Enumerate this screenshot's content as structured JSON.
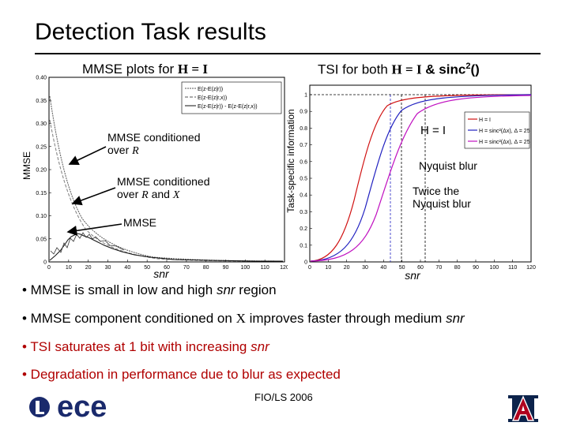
{
  "slide": {
    "title": "Detection Task results",
    "footer": "FIO/LS 2006",
    "logo_text": "ece"
  },
  "left_panel": {
    "title_prefix": "MMSE plots for ",
    "title_math": "H = I",
    "ylabel": "MMSE",
    "xlabel": "snr",
    "yticks": [
      "0.40",
      "0.35",
      "0.30",
      "0.25",
      "0.20",
      "0.15",
      "0.10",
      "0.05",
      "0"
    ],
    "xticks": [
      "0",
      "10",
      "20",
      "30",
      "40",
      "50",
      "60",
      "70",
      "80",
      "90",
      "100",
      "110",
      "120"
    ],
    "legend": [
      "E(z-E(z|r))",
      "E(z-E(z|r,x))",
      "E(z-E(z|r)) - E(z-E(z|r,x))"
    ],
    "annotations": {
      "cond_r_1": "MMSE conditioned",
      "cond_r_2": "over ",
      "cond_r_var": "R",
      "cond_rx_1": "MMSE conditioned",
      "cond_rx_2": "over ",
      "cond_rx_var": "R",
      "cond_rx_and": " and ",
      "cond_rx_var2": "X",
      "mmse": "MMSE"
    }
  },
  "right_panel": {
    "title_prefix": "TSI for both ",
    "title_math": "H = I",
    "title_suffix": " & sinc",
    "title_sup": "2",
    "title_end": "()",
    "ylabel": "Task-specific information",
    "xlabel": "snr",
    "yticks": [
      "1",
      "0.9",
      "0.8",
      "0.7",
      "0.6",
      "0.5",
      "0.4",
      "0.3",
      "0.2",
      "0.1",
      "0"
    ],
    "xticks": [
      "0",
      "10",
      "20",
      "30",
      "40",
      "50",
      "60",
      "70",
      "80",
      "90",
      "100",
      "110",
      "120"
    ],
    "legend": [
      "H = I",
      "H = sinc²(Δx), Δ = 25",
      "H = sinc²(Δx), Δ = 25"
    ],
    "annotations": {
      "h_eq_i": "H = I",
      "nyquist": "Nyquist blur",
      "twice_1": "Twice the",
      "twice_2": "Nyquist blur"
    }
  },
  "bullets": {
    "b1_a": "• MMSE is small in low and high ",
    "b1_i": "snr",
    "b1_b": " region",
    "b2_a": "• MMSE component conditioned on ",
    "b2_m": "X",
    "b2_b": " improves faster through medium ",
    "b2_i": "snr",
    "b3_a": "• TSI saturates at 1 bit with increasing ",
    "b3_i": "snr",
    "b4": "• Degradation in performance due to blur as expected"
  },
  "colors": {
    "red_text": "#b00000",
    "plot_blue": "#2020c0",
    "plot_red": "#d01010",
    "plot_magenta": "#c010c0",
    "logo_blue": "#1a2a6c",
    "ua_red": "#b0001e",
    "ua_navy": "#0c234b"
  }
}
